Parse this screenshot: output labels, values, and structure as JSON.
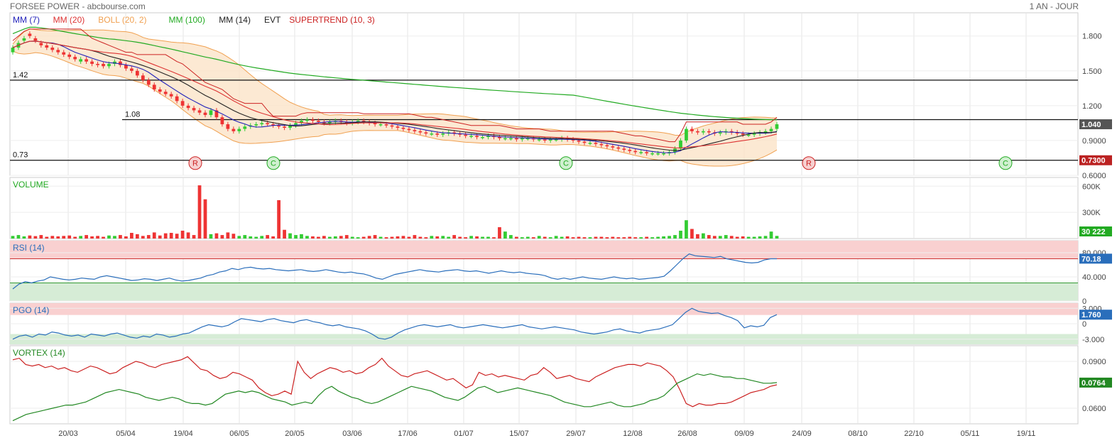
{
  "header": {
    "title": "FORSEE POWER - abcbourse.com",
    "period": "1 AN - JOUR"
  },
  "colors": {
    "mm7": "#2222bb",
    "mm20": "#dd3333",
    "boll": "#f0a050",
    "mm100": "#22aa22",
    "mm14": "#222222",
    "supertrend": "#cc2222",
    "up": "#33cc33",
    "down": "#ee3333",
    "rsi": "#2a6ebb",
    "vortex_plus": "#228822",
    "vortex_minus": "#cc2222",
    "zone_high": "#f9d0d0",
    "zone_low": "#d6ecd6"
  },
  "chart_data": [
    {
      "type": "candlestick",
      "name": "price",
      "legend": [
        {
          "label": "MM (7)",
          "color": "#2222bb"
        },
        {
          "label": "MM (20)",
          "color": "#dd3333"
        },
        {
          "label": "BOLL (20, 2)",
          "color": "#f0a050"
        },
        {
          "label": "MM (100)",
          "color": "#22aa22"
        },
        {
          "label": "MM (14)",
          "color": "#222222"
        },
        {
          "label": "EVT",
          "color": "#222222"
        },
        {
          "label": "SUPERTREND (10, 3)",
          "color": "#cc2222"
        }
      ],
      "y_ticks": [
        "1.800",
        "1.500",
        "1.200",
        "0.9000",
        "0.6000"
      ],
      "y_range": [
        0.6,
        2.0
      ],
      "levels": [
        {
          "label": "1.42",
          "value": 1.42
        },
        {
          "label": "1.08",
          "value": 1.08
        },
        {
          "label": "0.73",
          "value": 0.73
        }
      ],
      "last_value": "1.040",
      "support_value": "0.7300",
      "markers": [
        "R",
        "C",
        "C",
        "R",
        "C"
      ],
      "close": [
        1.7,
        1.74,
        1.78,
        1.8,
        1.76,
        1.72,
        1.7,
        1.68,
        1.66,
        1.64,
        1.62,
        1.6,
        1.6,
        1.58,
        1.56,
        1.55,
        1.54,
        1.56,
        1.58,
        1.55,
        1.52,
        1.5,
        1.46,
        1.42,
        1.38,
        1.34,
        1.32,
        1.3,
        1.28,
        1.24,
        1.2,
        1.18,
        1.16,
        1.14,
        1.12,
        1.16,
        1.1,
        1.04,
        1.0,
        0.98,
        1.0,
        1.02,
        1.03,
        1.04,
        1.05,
        1.04,
        1.03,
        1.02,
        1.01,
        1.03,
        1.05,
        1.07,
        1.08,
        1.07,
        1.06,
        1.05,
        1.06,
        1.07,
        1.06,
        1.05,
        1.06,
        1.07,
        1.06,
        1.05,
        1.04,
        1.04,
        1.03,
        1.02,
        1.01,
        1.0,
        0.99,
        0.98,
        0.97,
        0.96,
        0.96,
        0.95,
        0.96,
        0.97,
        0.96,
        0.95,
        0.94,
        0.94,
        0.93,
        0.93,
        0.94,
        0.93,
        0.92,
        0.92,
        0.92,
        0.91,
        0.92,
        0.92,
        0.91,
        0.91,
        0.9,
        0.91,
        0.91,
        0.92,
        0.91,
        0.9,
        0.89,
        0.88,
        0.88,
        0.87,
        0.86,
        0.85,
        0.84,
        0.83,
        0.82,
        0.81,
        0.8,
        0.8,
        0.79,
        0.79,
        0.79,
        0.79,
        0.8,
        0.83,
        0.9,
        1.0,
        0.98,
        0.97,
        0.98,
        0.97,
        0.96,
        0.97,
        0.98,
        0.97,
        0.96,
        0.95,
        0.95,
        0.96,
        0.97,
        0.98,
        1.0,
        1.04
      ],
      "open": [
        1.66,
        1.7,
        1.76,
        1.82,
        1.78,
        1.74,
        1.72,
        1.7,
        1.68,
        1.66,
        1.64,
        1.62,
        1.58,
        1.6,
        1.58,
        1.56,
        1.56,
        1.54,
        1.56,
        1.58,
        1.55,
        1.52,
        1.5,
        1.46,
        1.42,
        1.38,
        1.34,
        1.32,
        1.3,
        1.28,
        1.24,
        1.2,
        1.18,
        1.16,
        1.14,
        1.12,
        1.16,
        1.1,
        1.04,
        1.0,
        0.98,
        1.0,
        1.02,
        1.03,
        1.04,
        1.05,
        1.04,
        1.03,
        1.02,
        1.01,
        1.03,
        1.05,
        1.07,
        1.08,
        1.07,
        1.06,
        1.05,
        1.06,
        1.07,
        1.06,
        1.05,
        1.06,
        1.07,
        1.06,
        1.05,
        1.04,
        1.04,
        1.03,
        1.02,
        1.01,
        1.0,
        0.99,
        0.98,
        0.97,
        0.96,
        0.96,
        0.95,
        0.96,
        0.97,
        0.96,
        0.95,
        0.94,
        0.94,
        0.93,
        0.93,
        0.94,
        0.93,
        0.92,
        0.92,
        0.92,
        0.91,
        0.92,
        0.92,
        0.91,
        0.91,
        0.9,
        0.91,
        0.91,
        0.92,
        0.91,
        0.9,
        0.89,
        0.88,
        0.88,
        0.87,
        0.86,
        0.85,
        0.84,
        0.83,
        0.82,
        0.81,
        0.8,
        0.8,
        0.79,
        0.79,
        0.79,
        0.79,
        0.8,
        0.83,
        0.9,
        1.0,
        0.98,
        0.97,
        0.98,
        0.97,
        0.96,
        0.97,
        0.98,
        0.97,
        0.96,
        0.95,
        0.95,
        0.96,
        0.97,
        0.98,
        1.0
      ]
    },
    {
      "type": "bar",
      "name": "volume",
      "title": "VOLUME",
      "y_ticks": [
        "600K",
        "300K"
      ],
      "y_range": [
        0,
        700000
      ],
      "last_value": "30 222",
      "values": [
        30000,
        40000,
        25000,
        35000,
        28000,
        40000,
        20000,
        30000,
        25000,
        30000,
        35000,
        20000,
        30000,
        40000,
        25000,
        30000,
        20000,
        35000,
        30000,
        40000,
        25000,
        65000,
        50000,
        30000,
        40000,
        70000,
        35000,
        60000,
        65000,
        55000,
        90000,
        70000,
        40000,
        610000,
        450000,
        50000,
        60000,
        40000,
        70000,
        55000,
        30000,
        40000,
        25000,
        20000,
        30000,
        40000,
        25000,
        440000,
        100000,
        60000,
        40000,
        50000,
        30000,
        25000,
        20000,
        30000,
        20000,
        25000,
        30000,
        40000,
        20000,
        15000,
        20000,
        30000,
        40000,
        20000,
        15000,
        20000,
        25000,
        30000,
        20000,
        40000,
        20000,
        15000,
        30000,
        25000,
        30000,
        20000,
        40000,
        20000,
        15000,
        30000,
        25000,
        20000,
        20000,
        15000,
        130000,
        80000,
        40000,
        20000,
        15000,
        20000,
        15000,
        30000,
        20000,
        15000,
        30000,
        20000,
        25000,
        15000,
        20000,
        15000,
        15000,
        20000,
        20000,
        15000,
        20000,
        15000,
        15000,
        20000,
        15000,
        15000,
        20000,
        15000,
        20000,
        25000,
        30000,
        40000,
        90000,
        210000,
        110000,
        50000,
        60000,
        40000,
        30000,
        30000,
        40000,
        30000,
        20000,
        25000,
        20000,
        20000,
        25000,
        30000,
        80000,
        30222
      ]
    },
    {
      "type": "line",
      "name": "rsi",
      "title": "RSI (14)",
      "y_ticks": [
        "80.000",
        "40.000",
        "0"
      ],
      "y_range": [
        0,
        100
      ],
      "last_value": "70.18",
      "values": [
        20,
        28,
        32,
        30,
        33,
        35,
        40,
        38,
        36,
        35,
        36,
        38,
        37,
        36,
        40,
        42,
        40,
        38,
        36,
        34,
        35,
        37,
        36,
        34,
        36,
        38,
        35,
        33,
        34,
        36,
        38,
        42,
        44,
        48,
        50,
        54,
        52,
        55,
        56,
        54,
        53,
        54,
        52,
        51,
        50,
        51,
        52,
        50,
        49,
        50,
        52,
        50,
        48,
        47,
        48,
        46,
        45,
        42,
        38,
        36,
        40,
        44,
        46,
        48,
        50,
        52,
        50,
        49,
        48,
        50,
        51,
        52,
        50,
        49,
        50,
        48,
        46,
        48,
        50,
        48,
        47,
        48,
        46,
        45,
        44,
        42,
        38,
        36,
        38,
        36,
        38,
        40,
        38,
        37,
        36,
        38,
        40,
        38,
        37,
        38,
        36,
        37,
        38,
        39,
        41,
        50,
        60,
        70,
        78,
        75,
        74,
        73,
        72,
        74,
        70,
        68,
        66,
        64,
        63,
        64,
        68,
        70,
        70
      ]
    },
    {
      "type": "line",
      "name": "pgo",
      "title": "PGO (14)",
      "y_ticks": [
        "3.000",
        "0",
        "-3.000"
      ],
      "y_range": [
        -4,
        4
      ],
      "last_value": "1.760",
      "values": [
        -3.0,
        -2.4,
        -2.2,
        -2.6,
        -2.0,
        -2.2,
        -1.6,
        -1.8,
        -2.2,
        -2.4,
        -2.2,
        -2.6,
        -2.0,
        -2.2,
        -2.4,
        -2.0,
        -1.8,
        -2.2,
        -2.6,
        -2.8,
        -2.4,
        -2.6,
        -2.0,
        -2.2,
        -2.6,
        -2.4,
        -2.0,
        -1.8,
        -1.2,
        -0.6,
        -0.2,
        -0.4,
        -0.6,
        -0.3,
        0.4,
        1.0,
        0.8,
        0.6,
        0.4,
        0.8,
        1.0,
        0.6,
        0.4,
        0.2,
        0.6,
        0.8,
        0.4,
        0.2,
        -0.2,
        -0.4,
        -0.2,
        -0.6,
        -0.8,
        -1.0,
        -1.4,
        -2.0,
        -2.8,
        -3.0,
        -2.6,
        -1.8,
        -1.2,
        -0.8,
        -0.4,
        -0.2,
        -0.4,
        -0.6,
        -0.4,
        -0.2,
        -0.6,
        -0.8,
        -0.6,
        -0.4,
        -0.2,
        -0.4,
        -0.6,
        -0.8,
        -0.6,
        -0.4,
        -0.2,
        -0.6,
        -0.8,
        -1.0,
        -0.8,
        -0.6,
        -0.8,
        -1.0,
        -1.2,
        -1.6,
        -1.8,
        -2.0,
        -1.8,
        -1.6,
        -1.2,
        -1.0,
        -1.4,
        -1.6,
        -1.8,
        -1.4,
        -1.2,
        -1.0,
        -0.6,
        -0.2,
        1.0,
        2.2,
        3.0,
        2.4,
        2.2,
        2.0,
        2.1,
        1.6,
        1.2,
        0.6,
        -0.8,
        -0.4,
        -0.6,
        -0.3,
        1.2,
        1.76
      ]
    },
    {
      "type": "line",
      "name": "vortex",
      "title": "VORTEX (14)",
      "y_ticks": [
        "0.0900",
        "0.0600"
      ],
      "y_range": [
        0.05,
        0.1
      ],
      "last_value": "0.0764",
      "series": [
        {
          "values": [
            0.091,
            0.092,
            0.088,
            0.087,
            0.088,
            0.086,
            0.087,
            0.085,
            0.086,
            0.084,
            0.083,
            0.085,
            0.087,
            0.086,
            0.084,
            0.082,
            0.083,
            0.086,
            0.088,
            0.09,
            0.089,
            0.087,
            0.086,
            0.088,
            0.089,
            0.09,
            0.091,
            0.093,
            0.089,
            0.085,
            0.084,
            0.081,
            0.079,
            0.08,
            0.083,
            0.082,
            0.08,
            0.078,
            0.073,
            0.07,
            0.068,
            0.069,
            0.071,
            0.069,
            0.09,
            0.083,
            0.079,
            0.082,
            0.084,
            0.086,
            0.085,
            0.083,
            0.084,
            0.082,
            0.083,
            0.086,
            0.088,
            0.092,
            0.087,
            0.084,
            0.081,
            0.08,
            0.082,
            0.083,
            0.084,
            0.082,
            0.08,
            0.078,
            0.079,
            0.076,
            0.073,
            0.075,
            0.083,
            0.081,
            0.082,
            0.08,
            0.081,
            0.08,
            0.079,
            0.078,
            0.081,
            0.082,
            0.086,
            0.083,
            0.079,
            0.08,
            0.081,
            0.079,
            0.078,
            0.077,
            0.08,
            0.082,
            0.084,
            0.086,
            0.087,
            0.088,
            0.088,
            0.087,
            0.089,
            0.088,
            0.087,
            0.084,
            0.08,
            0.072,
            0.063,
            0.061,
            0.063,
            0.062,
            0.062,
            0.063,
            0.063,
            0.064,
            0.066,
            0.068,
            0.07,
            0.071,
            0.072,
            0.074,
            0.075
          ]
        },
        {
          "values": [
            0.052,
            0.054,
            0.056,
            0.057,
            0.058,
            0.059,
            0.06,
            0.061,
            0.062,
            0.062,
            0.063,
            0.064,
            0.066,
            0.068,
            0.07,
            0.071,
            0.072,
            0.071,
            0.07,
            0.069,
            0.067,
            0.066,
            0.065,
            0.066,
            0.067,
            0.066,
            0.064,
            0.063,
            0.063,
            0.062,
            0.063,
            0.066,
            0.069,
            0.07,
            0.071,
            0.07,
            0.071,
            0.07,
            0.068,
            0.066,
            0.065,
            0.064,
            0.062,
            0.063,
            0.064,
            0.063,
            0.068,
            0.072,
            0.074,
            0.071,
            0.069,
            0.067,
            0.066,
            0.064,
            0.063,
            0.064,
            0.066,
            0.068,
            0.07,
            0.072,
            0.074,
            0.073,
            0.072,
            0.071,
            0.069,
            0.067,
            0.066,
            0.065,
            0.067,
            0.07,
            0.073,
            0.074,
            0.072,
            0.07,
            0.071,
            0.072,
            0.073,
            0.072,
            0.071,
            0.07,
            0.069,
            0.068,
            0.066,
            0.064,
            0.063,
            0.062,
            0.061,
            0.061,
            0.062,
            0.063,
            0.064,
            0.062,
            0.061,
            0.061,
            0.062,
            0.063,
            0.065,
            0.066,
            0.068,
            0.072,
            0.076,
            0.078,
            0.08,
            0.082,
            0.081,
            0.082,
            0.081,
            0.08,
            0.08,
            0.079,
            0.079,
            0.078,
            0.077,
            0.076,
            0.076,
            0.0764
          ]
        }
      ]
    }
  ],
  "x_axis": {
    "labels": [
      "20/03",
      "05/04",
      "19/04",
      "06/05",
      "20/05",
      "03/06",
      "17/06",
      "01/07",
      "15/07",
      "29/07",
      "12/08",
      "26/08",
      "09/09",
      "24/09",
      "08/10",
      "22/10",
      "05/11",
      "19/11"
    ]
  }
}
